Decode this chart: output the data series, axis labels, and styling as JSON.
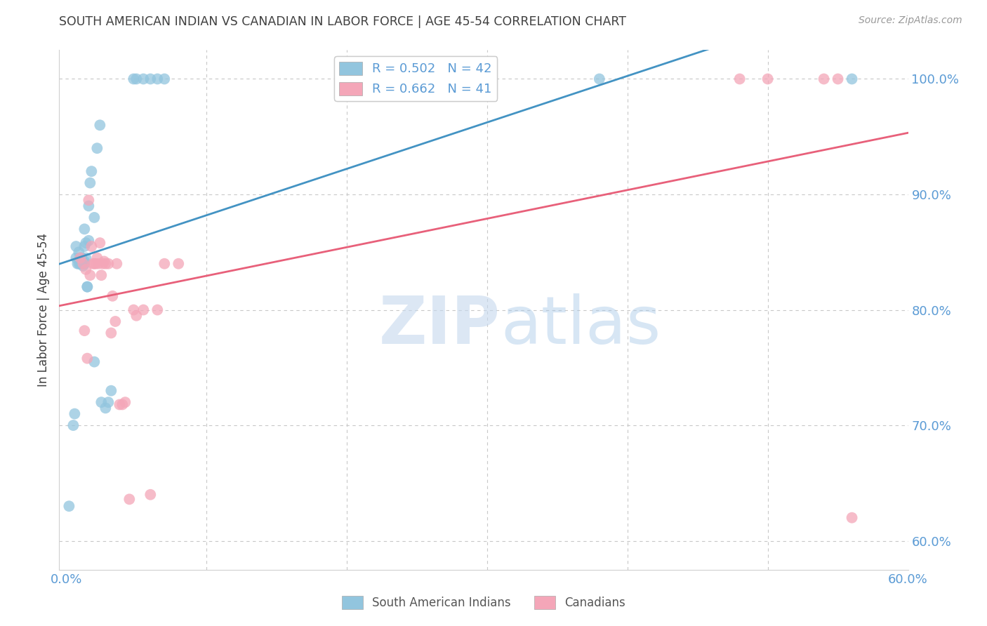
{
  "title": "SOUTH AMERICAN INDIAN VS CANADIAN IN LABOR FORCE | AGE 45-54 CORRELATION CHART",
  "source": "Source: ZipAtlas.com",
  "ylabel": "In Labor Force | Age 45-54",
  "watermark_zip": "ZIP",
  "watermark_atlas": "atlas",
  "xlim": [
    -0.005,
    0.6
  ],
  "ylim": [
    0.575,
    1.025
  ],
  "yticks": [
    0.6,
    0.7,
    0.8,
    0.9,
    1.0
  ],
  "ytick_labels": [
    "60.0%",
    "70.0%",
    "80.0%",
    "90.0%",
    "100.0%"
  ],
  "xtick_labels": [
    "0.0%",
    "60.0%"
  ],
  "xtick_pos": [
    0.0,
    0.6
  ],
  "blue_color": "#92c5de",
  "pink_color": "#f4a6b8",
  "blue_line_color": "#4393c3",
  "pink_line_color": "#e8607a",
  "axis_color": "#5b9bd5",
  "grid_color": "#c8c8c8",
  "title_color": "#404040",
  "legend_blue_label": "R = 0.502   N = 42",
  "legend_pink_label": "R = 0.662   N = 41",
  "legend_series1": "South American Indians",
  "legend_series2": "Canadians",
  "blue_x": [
    0.002,
    0.005,
    0.006,
    0.007,
    0.007,
    0.008,
    0.009,
    0.009,
    0.01,
    0.01,
    0.011,
    0.011,
    0.012,
    0.012,
    0.013,
    0.013,
    0.013,
    0.013,
    0.014,
    0.014,
    0.015,
    0.015,
    0.016,
    0.016,
    0.017,
    0.018,
    0.02,
    0.02,
    0.022,
    0.024,
    0.025,
    0.028,
    0.03,
    0.032,
    0.048,
    0.05,
    0.055,
    0.06,
    0.065,
    0.07,
    0.38,
    0.56
  ],
  "blue_y": [
    0.63,
    0.7,
    0.71,
    0.845,
    0.855,
    0.84,
    0.84,
    0.85,
    0.84,
    0.845,
    0.843,
    0.845,
    0.838,
    0.84,
    0.842,
    0.855,
    0.87,
    0.84,
    0.845,
    0.858,
    0.82,
    0.82,
    0.86,
    0.89,
    0.91,
    0.92,
    0.88,
    0.755,
    0.94,
    0.96,
    0.72,
    0.715,
    0.72,
    0.73,
    1.0,
    1.0,
    1.0,
    1.0,
    1.0,
    1.0,
    1.0,
    1.0
  ],
  "pink_x": [
    0.01,
    0.012,
    0.013,
    0.014,
    0.015,
    0.016,
    0.017,
    0.018,
    0.019,
    0.02,
    0.021,
    0.022,
    0.023,
    0.024,
    0.025,
    0.026,
    0.027,
    0.028,
    0.03,
    0.032,
    0.033,
    0.035,
    0.036,
    0.038,
    0.04,
    0.042,
    0.045,
    0.048,
    0.05,
    0.055,
    0.06,
    0.065,
    0.07,
    0.08,
    0.2,
    0.3,
    0.48,
    0.5,
    0.54,
    0.55,
    0.56
  ],
  "pink_y": [
    0.845,
    0.84,
    0.782,
    0.835,
    0.758,
    0.895,
    0.83,
    0.855,
    0.84,
    0.84,
    0.84,
    0.845,
    0.84,
    0.858,
    0.83,
    0.84,
    0.842,
    0.84,
    0.84,
    0.78,
    0.812,
    0.79,
    0.84,
    0.718,
    0.718,
    0.72,
    0.636,
    0.8,
    0.795,
    0.8,
    0.64,
    0.8,
    0.84,
    0.84,
    1.0,
    1.0,
    1.0,
    1.0,
    1.0,
    1.0,
    0.62
  ]
}
